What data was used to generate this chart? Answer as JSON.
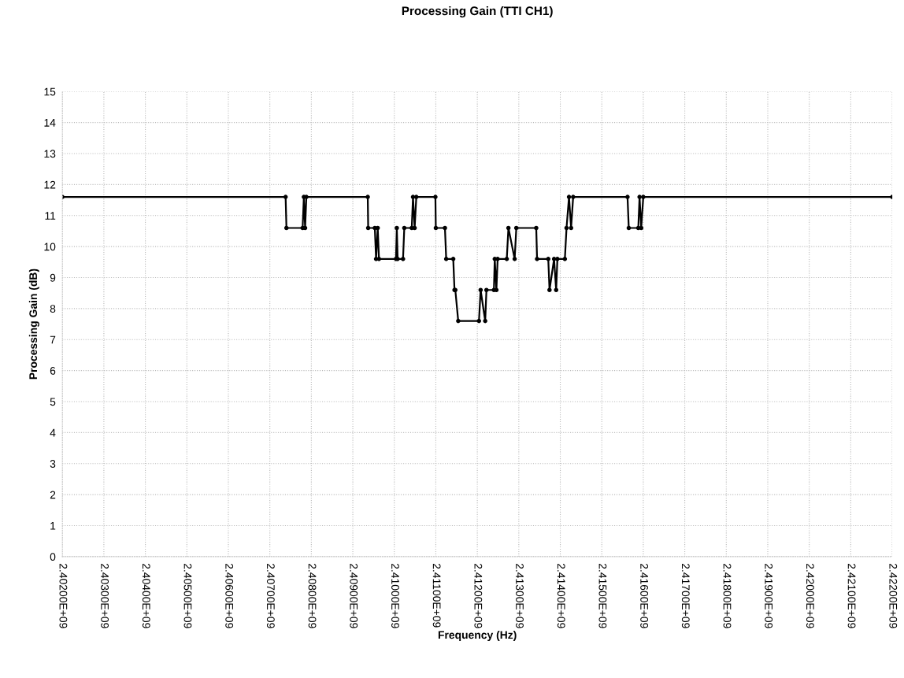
{
  "chart_data": {
    "type": "line",
    "title": "Processing Gain (TTI CH1)",
    "xlabel": "Frequency (Hz)",
    "ylabel": "Processing Gain (dB)",
    "series": [
      {
        "color": "#000000",
        "x": [
          2402000000,
          2407380000,
          2407400000,
          2407790000,
          2407820000,
          2407850000,
          2407880000,
          2409360000,
          2409370000,
          2409530000,
          2409560000,
          2409600000,
          2409630000,
          2410040000,
          2410060000,
          2410080000,
          2410210000,
          2410240000,
          2410420000,
          2410450000,
          2410490000,
          2410530000,
          2410990000,
          2411000000,
          2411220000,
          2411250000,
          2411420000,
          2411450000,
          2411470000,
          2411540000,
          2412040000,
          2412080000,
          2412190000,
          2412220000,
          2412400000,
          2412420000,
          2412460000,
          2412490000,
          2412710000,
          2412750000,
          2412900000,
          2412940000,
          2413420000,
          2413440000,
          2413710000,
          2413740000,
          2413850000,
          2413900000,
          2413930000,
          2414110000,
          2414150000,
          2414210000,
          2414260000,
          2414310000,
          2415620000,
          2415650000,
          2415880000,
          2415910000,
          2415950000,
          2416000000,
          2422000000
        ],
        "values": [
          11.6,
          11.6,
          10.6,
          10.6,
          11.6,
          10.6,
          11.6,
          11.6,
          10.6,
          10.6,
          9.6,
          10.6,
          9.6,
          9.6,
          10.6,
          9.6,
          9.6,
          10.6,
          10.6,
          11.6,
          10.6,
          11.6,
          11.6,
          10.6,
          10.6,
          9.6,
          9.6,
          8.6,
          8.6,
          7.6,
          7.6,
          8.6,
          7.6,
          8.6,
          8.6,
          9.6,
          8.6,
          9.6,
          9.6,
          10.6,
          9.6,
          10.6,
          10.6,
          9.6,
          9.6,
          8.6,
          9.6,
          8.6,
          9.6,
          9.6,
          10.6,
          11.6,
          10.6,
          11.6,
          11.6,
          10.6,
          10.6,
          11.6,
          10.6,
          11.6,
          11.6
        ]
      }
    ],
    "xlim": [
      2402000000,
      2422000000
    ],
    "xticks": [
      {
        "value": 2402000000,
        "label": "2.40200E+09"
      },
      {
        "value": 2403000000,
        "label": "2.40300E+09"
      },
      {
        "value": 2404000000,
        "label": "2.40400E+09"
      },
      {
        "value": 2405000000,
        "label": "2.40500E+09"
      },
      {
        "value": 2406000000,
        "label": "2.40600E+09"
      },
      {
        "value": 2407000000,
        "label": "2.40700E+09"
      },
      {
        "value": 2408000000,
        "label": "2.40800E+09"
      },
      {
        "value": 2409000000,
        "label": "2.40900E+09"
      },
      {
        "value": 2410000000,
        "label": "2.41000E+09"
      },
      {
        "value": 2411000000,
        "label": "2.41100E+09"
      },
      {
        "value": 2412000000,
        "label": "2.41200E+09"
      },
      {
        "value": 2413000000,
        "label": "2.41300E+09"
      },
      {
        "value": 2414000000,
        "label": "2.41400E+09"
      },
      {
        "value": 2415000000,
        "label": "2.41500E+09"
      },
      {
        "value": 2416000000,
        "label": "2.41600E+09"
      },
      {
        "value": 2417000000,
        "label": "2.41700E+09"
      },
      {
        "value": 2418000000,
        "label": "2.41800E+09"
      },
      {
        "value": 2419000000,
        "label": "2.41900E+09"
      },
      {
        "value": 2420000000,
        "label": "2.42000E+09"
      },
      {
        "value": 2421000000,
        "label": "2.42100E+09"
      },
      {
        "value": 2422000000,
        "label": "2.42200E+09"
      }
    ],
    "ylim": [
      0,
      15
    ],
    "yticks": [
      0,
      1,
      2,
      3,
      4,
      5,
      6,
      7,
      8,
      9,
      10,
      11,
      12,
      13,
      14,
      15
    ],
    "grid": true,
    "marker": "circle",
    "line_style": "solid",
    "legend": false
  }
}
